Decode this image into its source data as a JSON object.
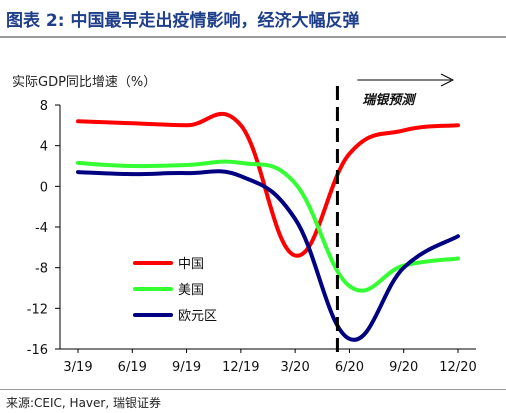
{
  "figure": {
    "title": "图表 2: 中国最早走出疫情影响，经济大幅反弹",
    "source": "来源:CEIC, Haver, 瑞银证券"
  },
  "chart_data": {
    "type": "line",
    "ylabel": "实际GDP同比增速（%）",
    "ylim": [
      -16,
      8
    ],
    "yticks": [
      8,
      4,
      0,
      -4,
      -8,
      -12,
      -16
    ],
    "x_tick_labels": [
      "3/19",
      "6/19",
      "9/19",
      "12/19",
      "3/20",
      "6/20",
      "9/20",
      "12/20"
    ],
    "forecast_label": "瑞银预测",
    "forecast_start": "6/20",
    "grid": false,
    "legend_position": "bottom-left",
    "series": [
      {
        "name": "中国",
        "color": "#ff0000",
        "x": [
          "3/19",
          "6/19",
          "9/19",
          "12/19",
          "3/20",
          "6/20",
          "9/20",
          "12/20"
        ],
        "values": [
          6.4,
          6.2,
          6.0,
          6.0,
          -6.8,
          3.2,
          5.5,
          6.0
        ]
      },
      {
        "name": "美国",
        "color": "#33ff33",
        "x": [
          "3/19",
          "6/19",
          "9/19",
          "12/19",
          "3/20",
          "6/20",
          "9/20",
          "12/20"
        ],
        "values": [
          2.3,
          2.0,
          2.1,
          2.3,
          0.3,
          -9.8,
          -7.8,
          -7.1
        ]
      },
      {
        "name": "欧元区",
        "color": "#000080",
        "x": [
          "3/19",
          "6/19",
          "9/19",
          "12/19",
          "3/20",
          "6/20",
          "9/20",
          "12/20"
        ],
        "values": [
          1.4,
          1.2,
          1.3,
          1.0,
          -3.2,
          -15.0,
          -8.0,
          -4.9
        ]
      }
    ]
  }
}
